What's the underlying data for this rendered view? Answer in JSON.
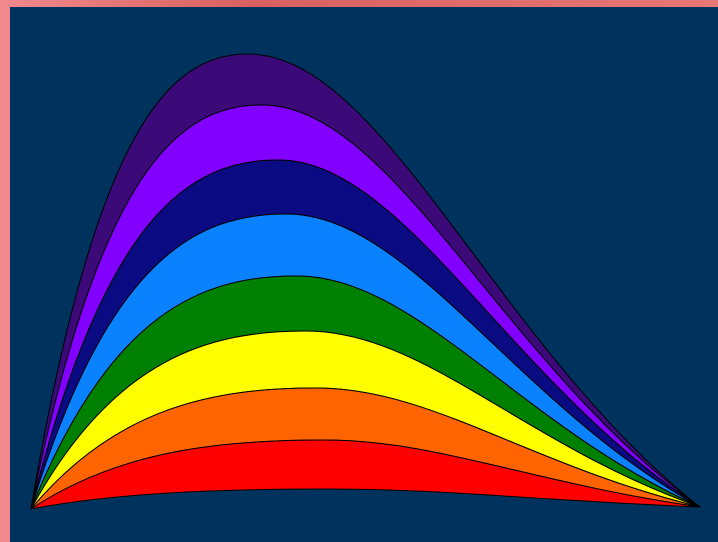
{
  "scene": {
    "background_color": "#00325e",
    "frame_gradient": [
      "#f08a8e",
      "#d9605e",
      "#e77878"
    ],
    "outline_color": "#000000",
    "bands": [
      {
        "name": "indigo-band",
        "color": "#3b0a78"
      },
      {
        "name": "violet-band",
        "color": "#8200ff"
      },
      {
        "name": "navy-band",
        "color": "#0a0a82"
      },
      {
        "name": "blue-band",
        "color": "#0a82ff"
      },
      {
        "name": "green-band",
        "color": "#008000"
      },
      {
        "name": "yellow-band",
        "color": "#ffff00"
      },
      {
        "name": "orange-band",
        "color": "#ff6400"
      },
      {
        "name": "red-band",
        "color": "#ff0000"
      }
    ]
  }
}
